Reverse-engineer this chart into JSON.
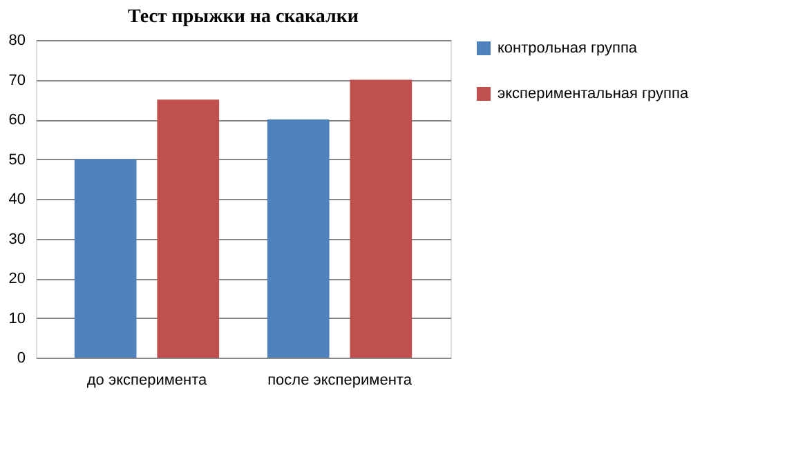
{
  "chart_data": {
    "type": "bar",
    "title": "Тест прыжки на скакалки",
    "categories": [
      "до эксперимента",
      "после эксперимента"
    ],
    "series": [
      {
        "name": "контрольная группа",
        "color": "#4f81bd",
        "values": [
          50,
          60
        ]
      },
      {
        "name": "экспериментальная группа",
        "color": "#c0504d",
        "values": [
          65,
          70
        ]
      }
    ],
    "ylim": [
      0,
      80
    ],
    "yticks": [
      0,
      10,
      20,
      30,
      40,
      50,
      60,
      70,
      80
    ],
    "grid": "y",
    "legend": "right"
  }
}
